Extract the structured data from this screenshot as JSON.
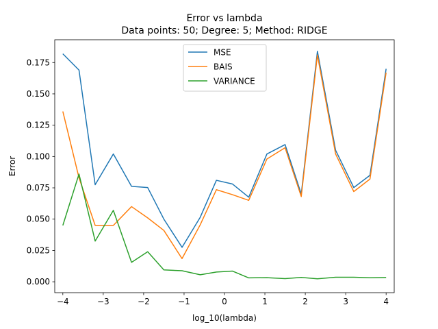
{
  "chart_data": {
    "type": "line",
    "title": "Error vs lambda",
    "subtitle": "Data points: 50; Degree: 5; Method: RIDGE",
    "xlabel": "log_10(lambda)",
    "ylabel": "Error",
    "xlim": [
      -4.2,
      4.2
    ],
    "ylim": [
      -0.0087,
      0.1932
    ],
    "xticks": [
      -4,
      -3,
      -2,
      -1,
      0,
      1,
      2,
      3,
      4
    ],
    "xtick_labels": [
      "−4",
      "−3",
      "−2",
      "−1",
      "0",
      "1",
      "2",
      "3",
      "4"
    ],
    "yticks": [
      0.0,
      0.025,
      0.05,
      0.075,
      0.1,
      0.125,
      0.15,
      0.175
    ],
    "ytick_labels": [
      "0.000",
      "0.025",
      "0.050",
      "0.075",
      "0.100",
      "0.125",
      "0.150",
      "0.175"
    ],
    "grid": false,
    "legend_position": "top-center",
    "x": [
      -4.0,
      -3.6,
      -3.2,
      -2.75,
      -2.3,
      -1.9,
      -1.5,
      -1.05,
      -0.6,
      -0.2,
      0.2,
      0.6,
      1.05,
      1.5,
      1.9,
      2.3,
      2.75,
      3.2,
      3.6,
      4.0
    ],
    "series": [
      {
        "name": "MSE",
        "color": "#1f77b4",
        "values": [
          0.182,
          0.169,
          0.0775,
          0.102,
          0.0762,
          0.0752,
          0.05,
          0.0275,
          0.0515,
          0.081,
          0.078,
          0.0675,
          0.102,
          0.1095,
          0.07,
          0.184,
          0.105,
          0.0752,
          0.085,
          0.17
        ]
      },
      {
        "name": "BAIS",
        "color": "#ff7f0e",
        "values": [
          0.136,
          0.083,
          0.045,
          0.045,
          0.06,
          0.051,
          0.041,
          0.0185,
          0.0455,
          0.0735,
          0.0695,
          0.065,
          0.098,
          0.107,
          0.068,
          0.181,
          0.102,
          0.072,
          0.082,
          0.167
        ]
      },
      {
        "name": "VARIANCE",
        "color": "#2ca02c",
        "values": [
          0.045,
          0.086,
          0.0325,
          0.057,
          0.0155,
          0.024,
          0.0095,
          0.0088,
          0.0056,
          0.0078,
          0.0085,
          0.0031,
          0.0033,
          0.0025,
          0.0035,
          0.0024,
          0.0036,
          0.0036,
          0.0032,
          0.0034
        ]
      }
    ]
  }
}
